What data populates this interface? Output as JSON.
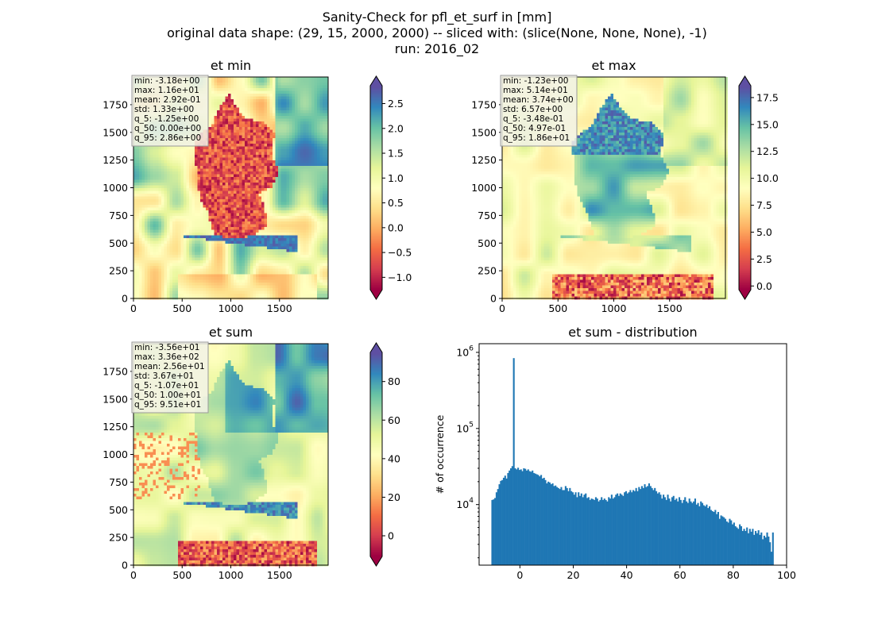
{
  "figure": {
    "suptitle_lines": [
      "Sanity-Check for pfl_et_surf in [mm]",
      "original data shape: (29, 15, 2000, 2000) -- sliced with: (slice(None, None, None), -1)",
      "run: 2016_02"
    ]
  },
  "chart_data": [
    {
      "type": "heatmap",
      "title": "et min",
      "xticks": [
        0,
        500,
        1000,
        1500
      ],
      "yticks": [
        0,
        250,
        500,
        750,
        1000,
        1250,
        1500,
        1750
      ],
      "xlim": [
        0,
        2000
      ],
      "ylim": [
        0,
        2000
      ],
      "colormap": "Spectral",
      "colorbar_extend": "both",
      "colorbar_ticks": [
        -1.0,
        -0.5,
        0.0,
        0.5,
        1.0,
        1.5,
        2.0,
        2.5
      ],
      "colorbar_tick_labels": [
        "−1.0",
        "−0.5",
        "0.0",
        "0.5",
        "1.0",
        "1.5",
        "2.0",
        "2.5"
      ],
      "colorbar_range": [
        -1.25,
        2.86
      ],
      "stats": [
        "min: -3.18e+00",
        "max: 1.16e+01",
        "mean: 2.92e-01",
        "std: 1.33e+00",
        "q_5: -1.25e+00",
        "q_50: 0.00e+00",
        "q_95: 2.86e+00"
      ]
    },
    {
      "type": "heatmap",
      "title": "et max",
      "xticks": [
        0,
        500,
        1000,
        1500
      ],
      "yticks": [
        0,
        250,
        500,
        750,
        1000,
        1250,
        1500,
        1750
      ],
      "xlim": [
        0,
        2000
      ],
      "ylim": [
        0,
        2000
      ],
      "colormap": "Spectral",
      "colorbar_extend": "both",
      "colorbar_ticks": [
        0.0,
        2.5,
        5.0,
        7.5,
        10.0,
        12.5,
        15.0,
        17.5
      ],
      "colorbar_tick_labels": [
        "0.0",
        "2.5",
        "5.0",
        "7.5",
        "10.0",
        "12.5",
        "15.0",
        "17.5"
      ],
      "colorbar_range": [
        -0.348,
        18.6
      ],
      "stats": [
        "min: -1.23e+00",
        "max: 5.14e+01",
        "mean: 3.74e+00",
        "std: 6.57e+00",
        "q_5: -3.48e-01",
        "q_50: 4.97e-01",
        "q_95: 1.86e+01"
      ]
    },
    {
      "type": "heatmap",
      "title": "et sum",
      "xticks": [
        0,
        500,
        1000,
        1500
      ],
      "yticks": [
        0,
        250,
        500,
        750,
        1000,
        1250,
        1500,
        1750
      ],
      "xlim": [
        0,
        2000
      ],
      "ylim": [
        0,
        2000
      ],
      "colormap": "Spectral",
      "colorbar_extend": "both",
      "colorbar_ticks": [
        0,
        20,
        40,
        60,
        80
      ],
      "colorbar_tick_labels": [
        "0",
        "20",
        "40",
        "60",
        "80"
      ],
      "colorbar_range": [
        -10.7,
        95.1
      ],
      "stats": [
        "min: -3.56e+01",
        "max: 3.36e+02",
        "mean: 2.56e+01",
        "std: 3.67e+01",
        "q_5: -1.07e+01",
        "q_50: 1.00e+01",
        "q_95: 9.51e+01"
      ]
    },
    {
      "type": "bar",
      "title": "et sum - distribution",
      "ylabel": "# of occurrence",
      "yscale": "log",
      "xlim": [
        -15.3,
        100
      ],
      "ylim": [
        1600,
        1300000
      ],
      "xticks": [
        0,
        20,
        40,
        60,
        80,
        100
      ],
      "yticks": [
        10000,
        100000,
        1000000
      ],
      "ytick_labels": [
        "10",
        "10",
        "10"
      ],
      "ytick_exponents": [
        "4",
        "5",
        "6"
      ],
      "color": "#1f77b4",
      "bin_range": [
        -10.7,
        95.1
      ],
      "counts": [
        11500,
        11700,
        12200,
        14500,
        16000,
        18500,
        20500,
        21000,
        22500,
        24000,
        22000,
        26000,
        28000,
        30000,
        32000,
        840000,
        30000,
        29000,
        30500,
        28500,
        29000,
        27500,
        30000,
        29500,
        28000,
        29000,
        27500,
        27000,
        28000,
        26000,
        25500,
        25000,
        24500,
        23500,
        24500,
        22000,
        22500,
        21000,
        19000,
        20000,
        19500,
        18500,
        19000,
        17500,
        17800,
        17000,
        16500,
        16000,
        17000,
        15500,
        15500,
        17500,
        16500,
        15000,
        16500,
        15000,
        14500,
        13500,
        14500,
        12500,
        14500,
        13000,
        14000,
        12500,
        13500,
        14000,
        12200,
        12500,
        11500,
        12000,
        11800,
        11500,
        12500,
        12000,
        11000,
        11500,
        12500,
        11500,
        12000,
        11500,
        11000,
        12500,
        12000,
        13500,
        12000,
        12500,
        13500,
        14000,
        13000,
        14000,
        13500,
        13000,
        14500,
        15000,
        14000,
        14500,
        15500,
        14500,
        15500,
        15000,
        16500,
        15000,
        17000,
        16000,
        17500,
        16500,
        18500,
        17000,
        17500,
        19000,
        17500,
        16500,
        15500,
        16500,
        15000,
        14000,
        14500,
        13500,
        12000,
        13500,
        12500,
        11500,
        13500,
        12000,
        11000,
        12500,
        13000,
        11500,
        12000,
        11000,
        12500,
        11500,
        10500,
        11500,
        12500,
        11000,
        10500,
        12000,
        11000,
        10500,
        11000,
        12000,
        10000,
        10500,
        9500,
        11000,
        10500,
        9800,
        9500,
        10000,
        9000,
        9500,
        8500,
        8200,
        8000,
        8500,
        7500,
        8000,
        6500,
        7200,
        7000,
        6800,
        6500,
        6000,
        5800,
        6500,
        6200,
        5500,
        5800,
        5200,
        5000,
        4800,
        5500,
        5200,
        4500,
        4800,
        4500,
        5000,
        4200,
        4800,
        4400,
        4800,
        4000,
        4500,
        4200,
        4600,
        4000,
        4300,
        3500,
        3900,
        3700,
        4300,
        3800,
        3200,
        2400,
        4300
      ]
    }
  ]
}
